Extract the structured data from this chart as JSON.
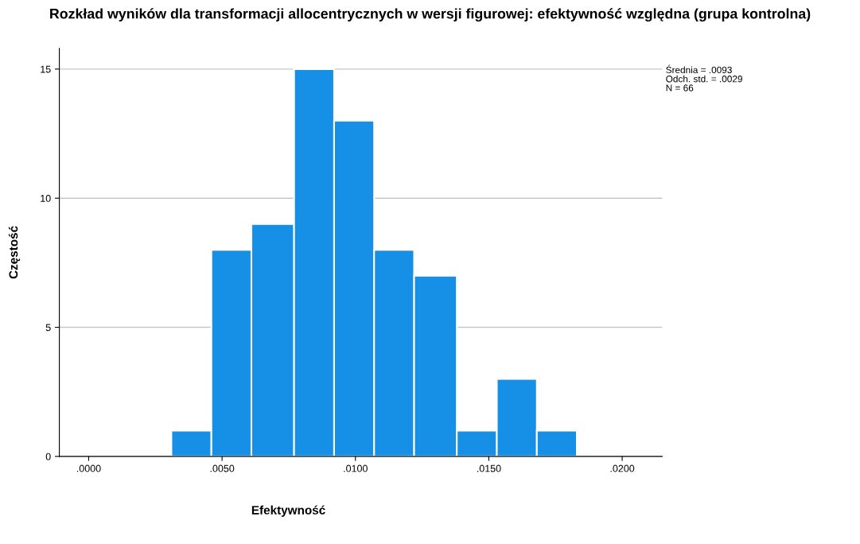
{
  "chart_data": {
    "type": "histogram",
    "title": "Rozkład wyników dla transformacji allocentrycznych w wersji figurowej: efektywność względna (grupa kontrolna)",
    "xlabel": "Efektywność",
    "ylabel": "Częstość",
    "bins": [
      0.0031,
      0.0046,
      0.0061,
      0.0077,
      0.0092,
      0.0107,
      0.0122,
      0.0138,
      0.0153,
      0.0168,
      0.0183
    ],
    "values": [
      1,
      8,
      9,
      15,
      13,
      8,
      7,
      1,
      3,
      1
    ],
    "color": "#1590e6",
    "xlim": [
      -0.0011,
      0.0215
    ],
    "xticks": [
      {
        "value": 0,
        "label": ".0000"
      },
      {
        "value": 0.005,
        "label": ".0050"
      },
      {
        "value": 0.01,
        "label": ".0100"
      },
      {
        "value": 0.015,
        "label": ".0150"
      },
      {
        "value": 0.02,
        "label": ".0200"
      }
    ],
    "ylim": [
      0,
      15.8
    ],
    "yticks": [
      0,
      5,
      10,
      15
    ],
    "grid": "y",
    "annotations": [
      "Średnia = .0093",
      "Odch. std. = .0029",
      "N = 66"
    ]
  }
}
